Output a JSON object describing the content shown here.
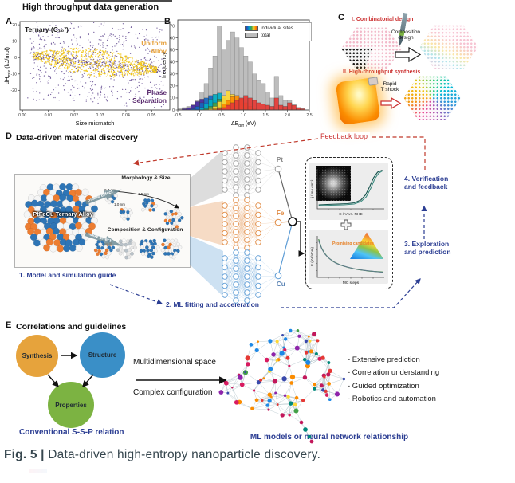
{
  "header": {
    "title": "High throughput data generation"
  },
  "caption": {
    "prefix": "Fig. 5 |",
    "text": " Data-driven high-entropy nanoparticle discovery."
  },
  "panel_a": {
    "label": "A"
  },
  "panel_b": {
    "label": "B"
  },
  "panel_c": {
    "label": "C",
    "step1_title": "I. Combinatorial design",
    "step1_arrow_label": "Composition\ndesign",
    "step2_title": "II. High-throughput synthesis",
    "step2_arrow_label": "Rapid\nT shock"
  },
  "panel_d": {
    "label": "D",
    "title": "Data-driven material discovery",
    "feedback_label": "Feedback loop",
    "steps": [
      "1. Model and simulation guide",
      "2. ML fitting and acceleration",
      "3. Exploration\nand prediction",
      "4. Verification\nand feedback"
    ],
    "elements": [
      "Pt",
      "Fe",
      "Cu"
    ],
    "element_colors": [
      "#8a8a8a",
      "#e0883f",
      "#5b84b5"
    ],
    "box": {
      "alloy_label": "PtFeCu Ternary Alloy",
      "arrow1": "Shape Effect",
      "arrow2": "Alloy Effect",
      "morphology_title": "Morphology & Size",
      "sizes": [
        "0.7 nm",
        "1.0 nm",
        "1.5 nm",
        "2.0 nm"
      ],
      "composition_title": "Composition & Configuration"
    },
    "inset_label": "Promising candidates"
  },
  "panel_e": {
    "label": "E",
    "title": "Correlations and guidelines",
    "nodes": [
      "Synthesis",
      "Structure",
      "Properties"
    ],
    "node_colors": [
      "#e6a33c",
      "#3a8fc7",
      "#7cb342"
    ],
    "left_caption": "Conventional S-S-P relation",
    "mid_top": "Multidimensional space",
    "mid_bottom": "Complex configuration",
    "right_caption": "ML models or neural network relationship",
    "bullets": [
      "- Extensive prediction",
      "- Correlation understanding",
      "- Guided optimization",
      "- Robotics and automation"
    ]
  },
  "chart_data": [
    {
      "id": "scatterA",
      "type": "scatter",
      "title": "Ternary (C₁₀³)",
      "xlabel": "Size mismatch",
      "ylabel_main": "dH",
      "ylabel_sub": "mix",
      "ylabel_unit": " (kJ/mol)",
      "xlim": [
        -0.001,
        0.057
      ],
      "ylim": [
        -32,
        22
      ],
      "xticks": [
        0.0,
        0.01,
        0.02,
        0.03,
        0.04,
        0.05
      ],
      "yticks": [
        20,
        10,
        0,
        -10,
        -20
      ],
      "series": [
        {
          "name": "Phase Separation",
          "color": "#4a2d7f",
          "n": 900
        },
        {
          "name": "Uniform Alloy",
          "color": "#f1c40f",
          "n": 750
        }
      ],
      "annotations": [
        {
          "text": "Uniform\nAlloy",
          "color": "#e8a33d"
        },
        {
          "text": "Phase\nSeparation",
          "color": "#5b2c6f"
        }
      ]
    },
    {
      "id": "histB",
      "type": "bar",
      "ylabel": "frequency",
      "xlabel_main": "ΔE",
      "xlabel_sub": "diff",
      "xlabel_unit": " (eV)",
      "xlim": [
        -0.5,
        2.5
      ],
      "ylim": [
        0,
        75
      ],
      "xticks": [
        -0.5,
        0.0,
        0.5,
        1.0,
        1.5,
        2.0,
        2.5
      ],
      "yticks": [
        0,
        10,
        20,
        30,
        40,
        50,
        60,
        70
      ],
      "bin_start": -0.5,
      "bin_width": 0.1,
      "total": {
        "name": "total",
        "color": "#bdbdbd",
        "values": [
          1,
          2,
          3,
          5,
          8,
          15,
          22,
          35,
          45,
          70,
          50,
          58,
          65,
          60,
          52,
          45,
          40,
          30,
          25,
          22,
          15,
          10,
          28,
          12,
          8,
          8,
          5,
          2,
          1,
          0
        ]
      },
      "site_series": [
        {
          "color": "#4527a0",
          "values": [
            0,
            1,
            2,
            4,
            7,
            9,
            6,
            3,
            1,
            0,
            0,
            0,
            0,
            0,
            0,
            0,
            0,
            0,
            0,
            0,
            0,
            0,
            0,
            0,
            0,
            0,
            0,
            0,
            0,
            0
          ]
        },
        {
          "color": "#1565c0",
          "values": [
            0,
            0,
            0,
            1,
            3,
            6,
            10,
            12,
            8,
            4,
            2,
            0,
            0,
            0,
            0,
            0,
            0,
            0,
            0,
            0,
            0,
            0,
            0,
            0,
            0,
            0,
            0,
            0,
            0,
            0
          ]
        },
        {
          "color": "#00acc1",
          "values": [
            0,
            0,
            0,
            0,
            0,
            2,
            5,
            9,
            13,
            14,
            9,
            5,
            2,
            0,
            0,
            0,
            0,
            0,
            0,
            0,
            0,
            0,
            0,
            0,
            0,
            0,
            0,
            0,
            0,
            0
          ]
        },
        {
          "color": "#43a047",
          "values": [
            0,
            0,
            0,
            0,
            0,
            0,
            1,
            3,
            6,
            9,
            10,
            8,
            5,
            2,
            0,
            0,
            0,
            0,
            0,
            0,
            0,
            0,
            0,
            0,
            0,
            0,
            0,
            0,
            0,
            0
          ]
        },
        {
          "color": "#fdd835",
          "values": [
            0,
            0,
            0,
            0,
            0,
            0,
            0,
            1,
            3,
            7,
            12,
            16,
            13,
            8,
            4,
            1,
            0,
            0,
            0,
            0,
            0,
            0,
            0,
            0,
            0,
            0,
            0,
            0,
            0,
            0
          ]
        },
        {
          "color": "#fb8c00",
          "values": [
            0,
            0,
            0,
            0,
            0,
            0,
            0,
            0,
            1,
            2,
            5,
            8,
            11,
            12,
            9,
            6,
            3,
            1,
            0,
            0,
            0,
            0,
            0,
            0,
            0,
            0,
            0,
            0,
            0,
            0
          ]
        },
        {
          "color": "#e53935",
          "values": [
            0,
            0,
            0,
            0,
            0,
            0,
            0,
            0,
            0,
            1,
            2,
            4,
            6,
            8,
            10,
            12,
            10,
            8,
            6,
            5,
            4,
            3,
            10,
            4,
            3,
            6,
            4,
            2,
            1,
            0
          ]
        }
      ],
      "legend": [
        {
          "label": "individual sites",
          "swatch": "rainbow"
        },
        {
          "label": "total",
          "swatch": "#bdbdbd"
        }
      ]
    },
    {
      "id": "orr",
      "type": "line",
      "xlabel": "E / V vs. RHE",
      "ylabel": "j / mA cm⁻²",
      "series": [
        {
          "color": "#16524c",
          "pts": [
            [
              0.02,
              0.1
            ],
            [
              0.15,
              0.11
            ],
            [
              0.3,
              0.12
            ],
            [
              0.45,
              0.13
            ],
            [
              0.55,
              0.15
            ],
            [
              0.65,
              0.22
            ],
            [
              0.72,
              0.35
            ],
            [
              0.78,
              0.55
            ],
            [
              0.84,
              0.78
            ],
            [
              0.9,
              0.92
            ],
            [
              0.97,
              0.97
            ]
          ]
        },
        {
          "color": "#3d8b80",
          "pts": [
            [
              0.02,
              0.08
            ],
            [
              0.2,
              0.09
            ],
            [
              0.4,
              0.1
            ],
            [
              0.55,
              0.12
            ],
            [
              0.65,
              0.18
            ],
            [
              0.73,
              0.3
            ],
            [
              0.8,
              0.52
            ],
            [
              0.86,
              0.76
            ],
            [
              0.92,
              0.9
            ],
            [
              0.98,
              0.96
            ]
          ]
        }
      ]
    },
    {
      "id": "mc",
      "type": "line",
      "xlabel": "MC steps",
      "ylabel": "E (eV/atom)",
      "series": [
        {
          "color": "#2e7d32",
          "pts": [
            [
              0.02,
              0.92
            ],
            [
              0.06,
              0.72
            ],
            [
              0.1,
              0.6
            ],
            [
              0.16,
              0.48
            ],
            [
              0.24,
              0.38
            ],
            [
              0.34,
              0.3
            ],
            [
              0.46,
              0.24
            ],
            [
              0.6,
              0.19
            ],
            [
              0.78,
              0.15
            ],
            [
              0.98,
              0.13
            ]
          ]
        },
        {
          "color": "#607d8b",
          "pts": [
            [
              0.02,
              0.88
            ],
            [
              0.07,
              0.68
            ],
            [
              0.12,
              0.55
            ],
            [
              0.19,
              0.44
            ],
            [
              0.28,
              0.34
            ],
            [
              0.4,
              0.27
            ],
            [
              0.54,
              0.21
            ],
            [
              0.7,
              0.17
            ],
            [
              0.98,
              0.12
            ]
          ]
        }
      ]
    }
  ]
}
